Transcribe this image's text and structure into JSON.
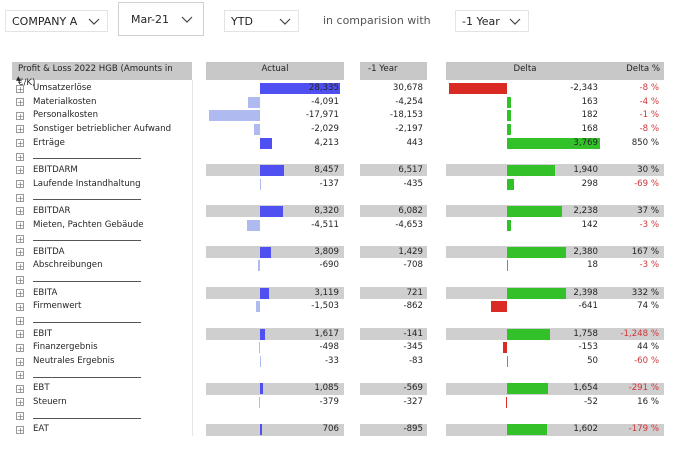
{
  "filters": [
    "COMPANY A",
    "Mar-21",
    "YTD"
  ],
  "comparison": {
    "text": "in comparision with",
    "value": "-1 Year"
  },
  "table": {
    "headers": [
      "Profit & Loss 2022 HGB (Amounts in €/K)",
      "Actual",
      "-1 Year",
      "Delta",
      "Delta %"
    ],
    "rows": [
      {
        "label": "Umsatzerlöse",
        "actual": {
          "value": 28335,
          "label": "28,335"
        },
        "prior": {
          "value": 30678,
          "label": "30,678"
        },
        "delta": {
          "value": -2343,
          "label": "-2,343"
        },
        "delta_pct": {
          "value": -8,
          "label": "-8 %"
        }
      },
      {
        "label": "Materialkosten",
        "actual": {
          "value": -4091,
          "label": "-4,091"
        },
        "prior": {
          "value": -4254,
          "label": "-4,254"
        },
        "delta": {
          "value": 163,
          "label": "163"
        },
        "delta_pct": {
          "value": -4,
          "label": "-4 %"
        }
      },
      {
        "label": "Personalkosten",
        "actual": {
          "value": -17971,
          "label": "-17,971"
        },
        "prior": {
          "value": -18153,
          "label": "-18,153"
        },
        "delta": {
          "value": 182,
          "label": "182"
        },
        "delta_pct": {
          "value": -1,
          "label": "-1 %"
        }
      },
      {
        "label": "Sonstiger betrieblicher Aufwand",
        "actual": {
          "value": -2029,
          "label": "-2,029"
        },
        "prior": {
          "value": -2197,
          "label": "-2,197"
        },
        "delta": {
          "value": 168,
          "label": "168"
        },
        "delta_pct": {
          "value": -8,
          "label": "-8 %"
        }
      },
      {
        "label": "Erträge",
        "actual": {
          "value": 4213,
          "label": "4,213"
        },
        "prior": {
          "value": 443,
          "label": "443"
        },
        "delta": {
          "value": 3769,
          "label": "3,769"
        },
        "delta_pct": {
          "value": 850,
          "label": "850 %"
        }
      },
      {
        "label": null
      },
      {
        "label": "EBITDARM",
        "highlight": true,
        "actual": {
          "value": 8457,
          "label": "8,457"
        },
        "prior": {
          "value": 6517,
          "label": "6,517"
        },
        "delta": {
          "value": 1940,
          "label": "1,940"
        },
        "delta_pct": {
          "value": 30,
          "label": "30 %"
        }
      },
      {
        "label": "Laufende Instandhaltung",
        "actual": {
          "value": -137,
          "label": "-137"
        },
        "prior": {
          "value": -435,
          "label": "-435"
        },
        "delta": {
          "value": 298,
          "label": "298"
        },
        "delta_pct": {
          "value": -69,
          "label": "-69 %"
        }
      },
      {
        "label": null
      },
      {
        "label": "EBITDAR",
        "highlight": true,
        "actual": {
          "value": 8320,
          "label": "8,320"
        },
        "prior": {
          "value": 6082,
          "label": "6,082"
        },
        "delta": {
          "value": 2238,
          "label": "2,238"
        },
        "delta_pct": {
          "value": 37,
          "label": "37 %"
        }
      },
      {
        "label": "Mieten, Pachten Gebäude",
        "actual": {
          "value": -4511,
          "label": "-4,511"
        },
        "prior": {
          "value": -4653,
          "label": "-4,653"
        },
        "delta": {
          "value": 142,
          "label": "142"
        },
        "delta_pct": {
          "value": -3,
          "label": "-3 %"
        }
      },
      {
        "label": null
      },
      {
        "label": "EBITDA",
        "highlight": true,
        "actual": {
          "value": 3809,
          "label": "3,809"
        },
        "prior": {
          "value": 1429,
          "label": "1,429"
        },
        "delta": {
          "value": 2380,
          "label": "2,380"
        },
        "delta_pct": {
          "value": 167,
          "label": "167 %"
        }
      },
      {
        "label": "Abschreibungen",
        "actual": {
          "value": -690,
          "label": "-690"
        },
        "prior": {
          "value": -708,
          "label": "-708"
        },
        "delta": {
          "value": 18,
          "label": "18"
        },
        "delta_pct": {
          "value": -3,
          "label": "-3 %"
        }
      },
      {
        "label": null
      },
      {
        "label": "EBITA",
        "highlight": true,
        "actual": {
          "value": 3119,
          "label": "3,119"
        },
        "prior": {
          "value": 721,
          "label": "721"
        },
        "delta": {
          "value": 2398,
          "label": "2,398"
        },
        "delta_pct": {
          "value": 332,
          "label": "332 %"
        }
      },
      {
        "label": "Firmenwert",
        "actual": {
          "value": -1503,
          "label": "-1,503"
        },
        "prior": {
          "value": -862,
          "label": "-862"
        },
        "delta": {
          "value": -641,
          "label": "-641"
        },
        "delta_pct": {
          "value": 74,
          "label": "74 %"
        }
      },
      {
        "label": null
      },
      {
        "label": "EBIT",
        "highlight": true,
        "actual": {
          "value": 1617,
          "label": "1,617"
        },
        "prior": {
          "value": -141,
          "label": "-141"
        },
        "delta": {
          "value": 1758,
          "label": "1,758"
        },
        "delta_pct": {
          "value": -1248,
          "label": "-1,248 %"
        }
      },
      {
        "label": "Finanzergebnis",
        "actual": {
          "value": -498,
          "label": "-498"
        },
        "prior": {
          "value": -345,
          "label": "-345"
        },
        "delta": {
          "value": -153,
          "label": "-153"
        },
        "delta_pct": {
          "value": 44,
          "label": "44 %"
        }
      },
      {
        "label": "Neutrales Ergebnis",
        "actual": {
          "value": -33,
          "label": "-33"
        },
        "prior": {
          "value": -83,
          "label": "-83"
        },
        "delta": {
          "value": 50,
          "label": "50"
        },
        "delta_pct": {
          "value": -60,
          "label": "-60 %"
        }
      },
      {
        "label": null
      },
      {
        "label": "EBT",
        "highlight": true,
        "actual": {
          "value": 1085,
          "label": "1,085"
        },
        "prior": {
          "value": -569,
          "label": "-569"
        },
        "delta": {
          "value": 1654,
          "label": "1,654"
        },
        "delta_pct": {
          "value": -291,
          "label": "-291 %"
        }
      },
      {
        "label": "Steuern",
        "actual": {
          "value": -379,
          "label": "-379"
        },
        "prior": {
          "value": -327,
          "label": "-327"
        },
        "delta": {
          "value": -52,
          "label": "-52"
        },
        "delta_pct": {
          "value": 16,
          "label": "16 %"
        }
      },
      {
        "label": null
      },
      {
        "label": "EAT",
        "highlight": true,
        "actual": {
          "value": 706,
          "label": "706"
        },
        "prior": {
          "value": -895,
          "label": "-895"
        },
        "delta": {
          "value": 1602,
          "label": "1,602"
        },
        "delta_pct": {
          "value": -179,
          "label": "-179 %"
        }
      }
    ]
  }
}
